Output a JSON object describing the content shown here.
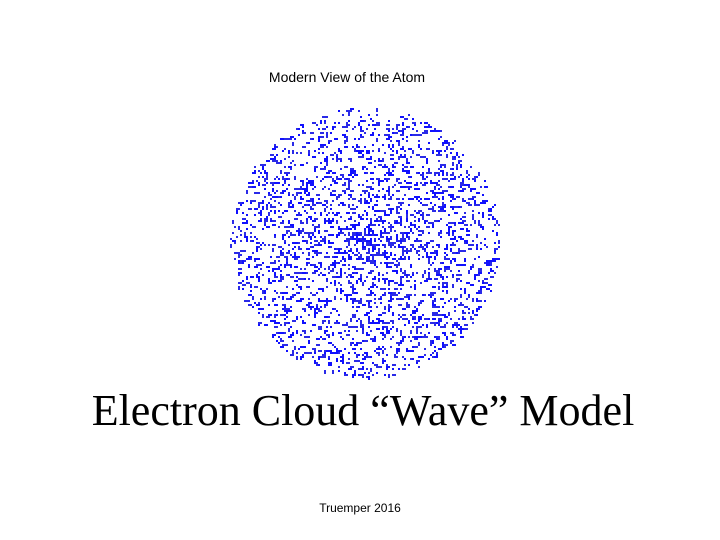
{
  "slide": {
    "caption": "Modern View of the Atom",
    "title": "Electron Cloud “Wave” Model",
    "footer": "Truemper 2016"
  }
}
